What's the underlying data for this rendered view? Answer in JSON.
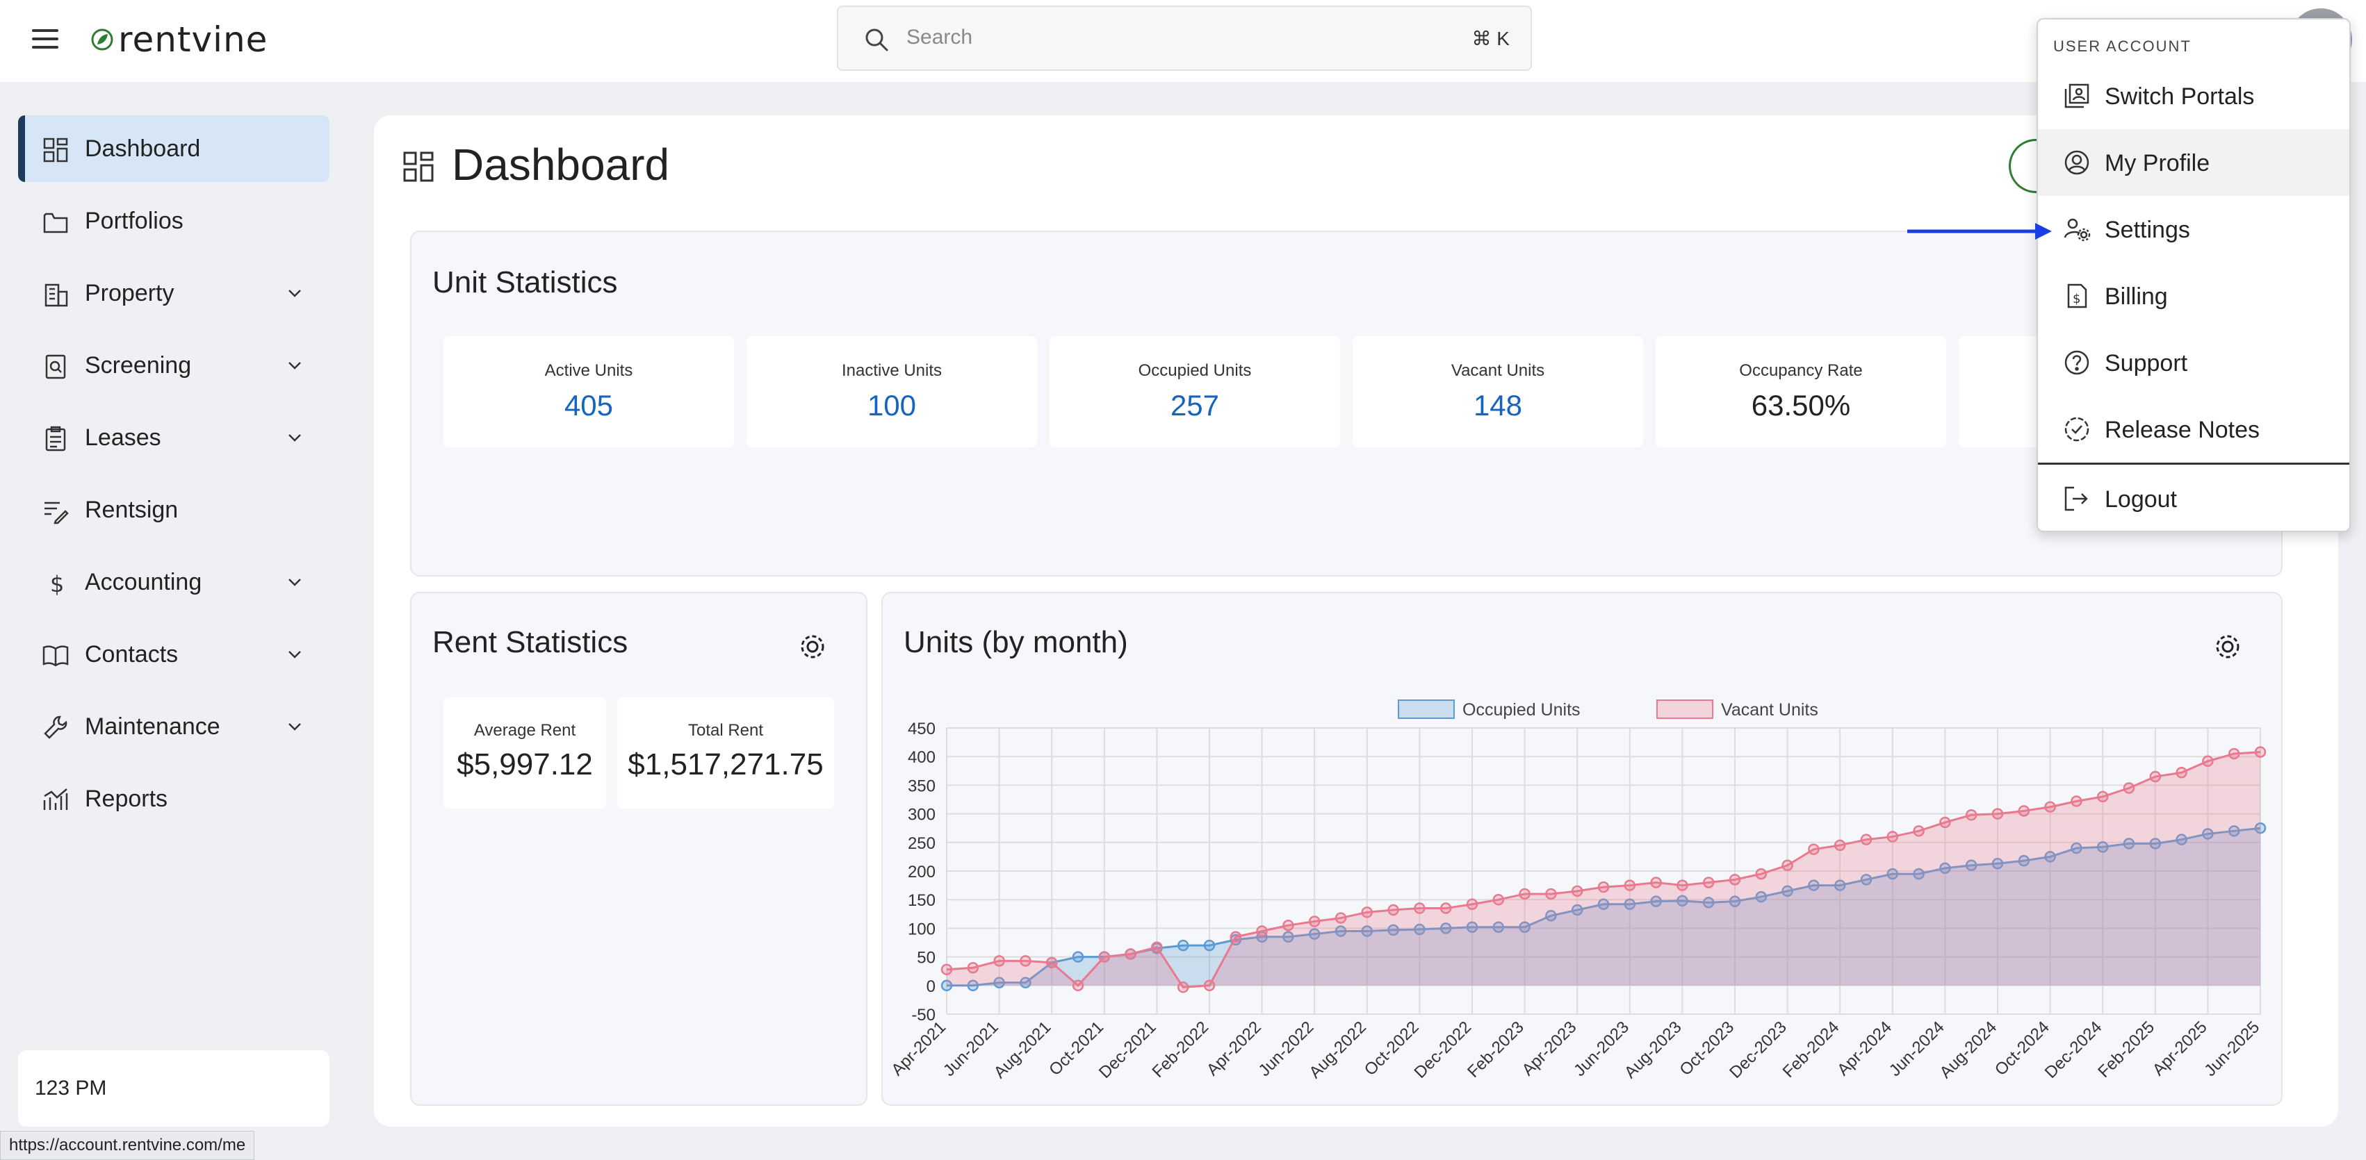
{
  "header": {
    "brand": "rentvine",
    "search": {
      "placeholder": "Search",
      "shortcut": "⌘ K"
    }
  },
  "sidebar": {
    "items": [
      {
        "label": "Dashboard",
        "icon": "dashboard-grid-icon",
        "active": true,
        "expandable": false
      },
      {
        "label": "Portfolios",
        "icon": "folder-icon",
        "expandable": false
      },
      {
        "label": "Property",
        "icon": "building-icon",
        "expandable": true
      },
      {
        "label": "Screening",
        "icon": "screening-doc-icon",
        "expandable": true
      },
      {
        "label": "Leases",
        "icon": "clipboard-icon",
        "expandable": true
      },
      {
        "label": "Rentsign",
        "icon": "signature-icon",
        "expandable": false
      },
      {
        "label": "Accounting",
        "icon": "dollar-icon",
        "expandable": true
      },
      {
        "label": "Contacts",
        "icon": "book-icon",
        "expandable": true
      },
      {
        "label": "Maintenance",
        "icon": "wrench-icon",
        "expandable": true
      },
      {
        "label": "Reports",
        "icon": "chart-icon",
        "expandable": false
      }
    ],
    "property_manager": "123 PM"
  },
  "status_bar": {
    "url": "https://account.rentvine.com/me"
  },
  "page": {
    "title": "Dashboard"
  },
  "unit_statistics": {
    "title": "Unit Statistics",
    "cards": [
      {
        "label": "Active Units",
        "value": "405"
      },
      {
        "label": "Inactive Units",
        "value": "100"
      },
      {
        "label": "Occupied Units",
        "value": "257"
      },
      {
        "label": "Vacant Units",
        "value": "148"
      },
      {
        "label": "Occupancy Rate",
        "value": "63.50%"
      }
    ]
  },
  "rent_statistics": {
    "title": "Rent Statistics",
    "cards": [
      {
        "label": "Average Rent",
        "value": "$5,997.12"
      },
      {
        "label": "Total Rent",
        "value": "$1,517,271.75"
      }
    ]
  },
  "units_chart": {
    "title": "Units (by month)"
  },
  "chart_data": {
    "type": "area",
    "x": [
      "Apr-2021",
      "May-2021",
      "Jun-2021",
      "Jul-2021",
      "Aug-2021",
      "Sep-2021",
      "Oct-2021",
      "Nov-2021",
      "Dec-2021",
      "Jan-2022",
      "Feb-2022",
      "Mar-2022",
      "Apr-2022",
      "May-2022",
      "Jun-2022",
      "Jul-2022",
      "Aug-2022",
      "Sep-2022",
      "Oct-2022",
      "Nov-2022",
      "Dec-2022",
      "Jan-2023",
      "Feb-2023",
      "Mar-2023",
      "Apr-2023",
      "May-2023",
      "Jun-2023",
      "Jul-2023",
      "Aug-2023",
      "Sep-2023",
      "Oct-2023",
      "Nov-2023",
      "Dec-2023",
      "Jan-2024",
      "Feb-2024",
      "Mar-2024",
      "Apr-2024",
      "May-2024",
      "Jun-2024",
      "Jul-2024",
      "Aug-2024",
      "Sep-2024",
      "Oct-2024",
      "Nov-2024",
      "Dec-2024",
      "Jan-2025",
      "Feb-2025",
      "Mar-2025",
      "Apr-2025",
      "May-2025",
      "Jun-2025"
    ],
    "tick_labels": [
      "Apr-2021",
      "Jun-2021",
      "Aug-2021",
      "Oct-2021",
      "Dec-2021",
      "Feb-2022",
      "Apr-2022",
      "Jun-2022",
      "Aug-2022",
      "Oct-2022",
      "Dec-2022",
      "Feb-2023",
      "Apr-2023",
      "Jun-2023",
      "Aug-2023",
      "Oct-2023",
      "Dec-2023",
      "Feb-2024",
      "Apr-2024",
      "Jun-2024",
      "Aug-2024",
      "Oct-2024",
      "Dec-2024",
      "Feb-2025",
      "Apr-2025",
      "Jun-2025"
    ],
    "series": [
      {
        "name": "Occupied Units",
        "color": "#5b9bd5",
        "values": [
          0,
          0,
          5,
          5,
          40,
          50,
          50,
          55,
          65,
          70,
          70,
          80,
          85,
          85,
          90,
          95,
          95,
          97,
          98,
          100,
          102,
          102,
          102,
          122,
          132,
          142,
          142,
          147,
          148,
          145,
          147,
          155,
          165,
          175,
          175,
          185,
          195,
          195,
          205,
          210,
          213,
          218,
          225,
          240,
          242,
          248,
          248,
          255,
          265,
          270,
          275
        ]
      },
      {
        "name": "Vacant Units",
        "color": "#e8798f",
        "values": [
          28,
          31,
          43,
          43,
          40,
          0,
          50,
          55,
          67,
          -3,
          0,
          85,
          95,
          105,
          112,
          118,
          128,
          132,
          135,
          135,
          142,
          150,
          160,
          160,
          165,
          172,
          175,
          180,
          175,
          180,
          185,
          195,
          210,
          238,
          245,
          255,
          260,
          270,
          285,
          298,
          300,
          305,
          312,
          322,
          330,
          345,
          365,
          372,
          392,
          405,
          408
        ]
      }
    ],
    "ylim": [
      -50,
      450
    ],
    "y_ticks": [
      -50,
      0,
      50,
      100,
      150,
      200,
      250,
      300,
      350,
      400,
      450
    ],
    "legend": "top-center",
    "grid": true
  },
  "user_menu": {
    "header": "USER ACCOUNT",
    "items": [
      {
        "label": "Switch Portals",
        "icon": "portal-switch-icon"
      },
      {
        "label": "My Profile",
        "icon": "user-circle-icon"
      },
      {
        "label": "Settings",
        "icon": "user-gear-icon"
      },
      {
        "label": "Billing",
        "icon": "billing-doc-icon"
      },
      {
        "label": "Support",
        "icon": "question-circle-icon"
      },
      {
        "label": "Release Notes",
        "icon": "badge-check-icon"
      }
    ],
    "logout": {
      "label": "Logout",
      "icon": "logout-icon"
    }
  },
  "colors": {
    "accent": "#1565c0",
    "active_nav": "#d6e6f6",
    "arrow": "#1a3de6",
    "brand_leaf": "#2e7d32"
  }
}
